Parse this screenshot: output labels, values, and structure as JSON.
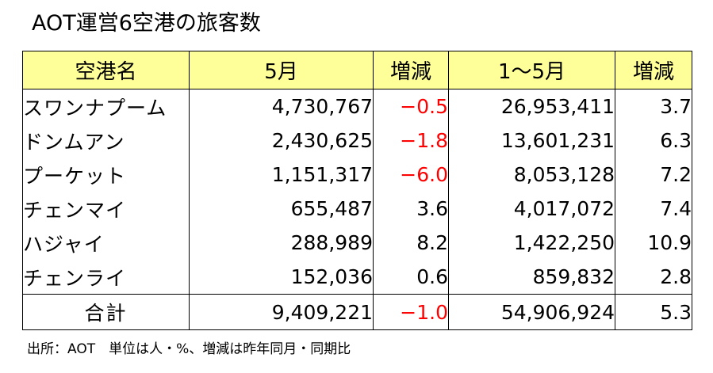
{
  "title": "AOT運営6空港の旅客数",
  "headers": [
    "空港名",
    "5月",
    "増減",
    "1～5月",
    "増減"
  ],
  "rows": [
    {
      "name": "スワンナプーム",
      "may": "4,730,767",
      "may_change": "−0.5",
      "may_change_negative": true,
      "ytd": "26,953,411",
      "ytd_change": "3.7"
    },
    {
      "name": "ドンムアン",
      "may": "2,430,625",
      "may_change": "−1.8",
      "may_change_negative": true,
      "ytd": "13,601,231",
      "ytd_change": "6.3"
    },
    {
      "name": "プーケット",
      "may": "1,151,317",
      "may_change": "−6.0",
      "may_change_negative": true,
      "ytd": "8,053,128",
      "ytd_change": "7.2"
    },
    {
      "name": "チェンマイ",
      "may": "655,487",
      "may_change": "3.6",
      "may_change_negative": false,
      "ytd": "4,017,072",
      "ytd_change": "7.4"
    },
    {
      "name": "ハジャイ",
      "may": "288,989",
      "may_change": "8.2",
      "may_change_negative": false,
      "ytd": "1,422,250",
      "ytd_change": "10.9"
    },
    {
      "name": "チェンライ",
      "may": "152,036",
      "may_change": "0.6",
      "may_change_negative": false,
      "ytd": "859,832",
      "ytd_change": "2.8"
    }
  ],
  "total": {
    "name": "合計",
    "may": "9,409,221",
    "may_change": "−1.0",
    "may_change_negative": true,
    "ytd": "54,906,924",
    "ytd_change": "5.3"
  },
  "source": "出所：AOT　単位は人・%、増減は昨年同月・同期比",
  "colors": {
    "header_bg": "#ffff99",
    "negative": "#ff0000",
    "border": "#000000"
  }
}
